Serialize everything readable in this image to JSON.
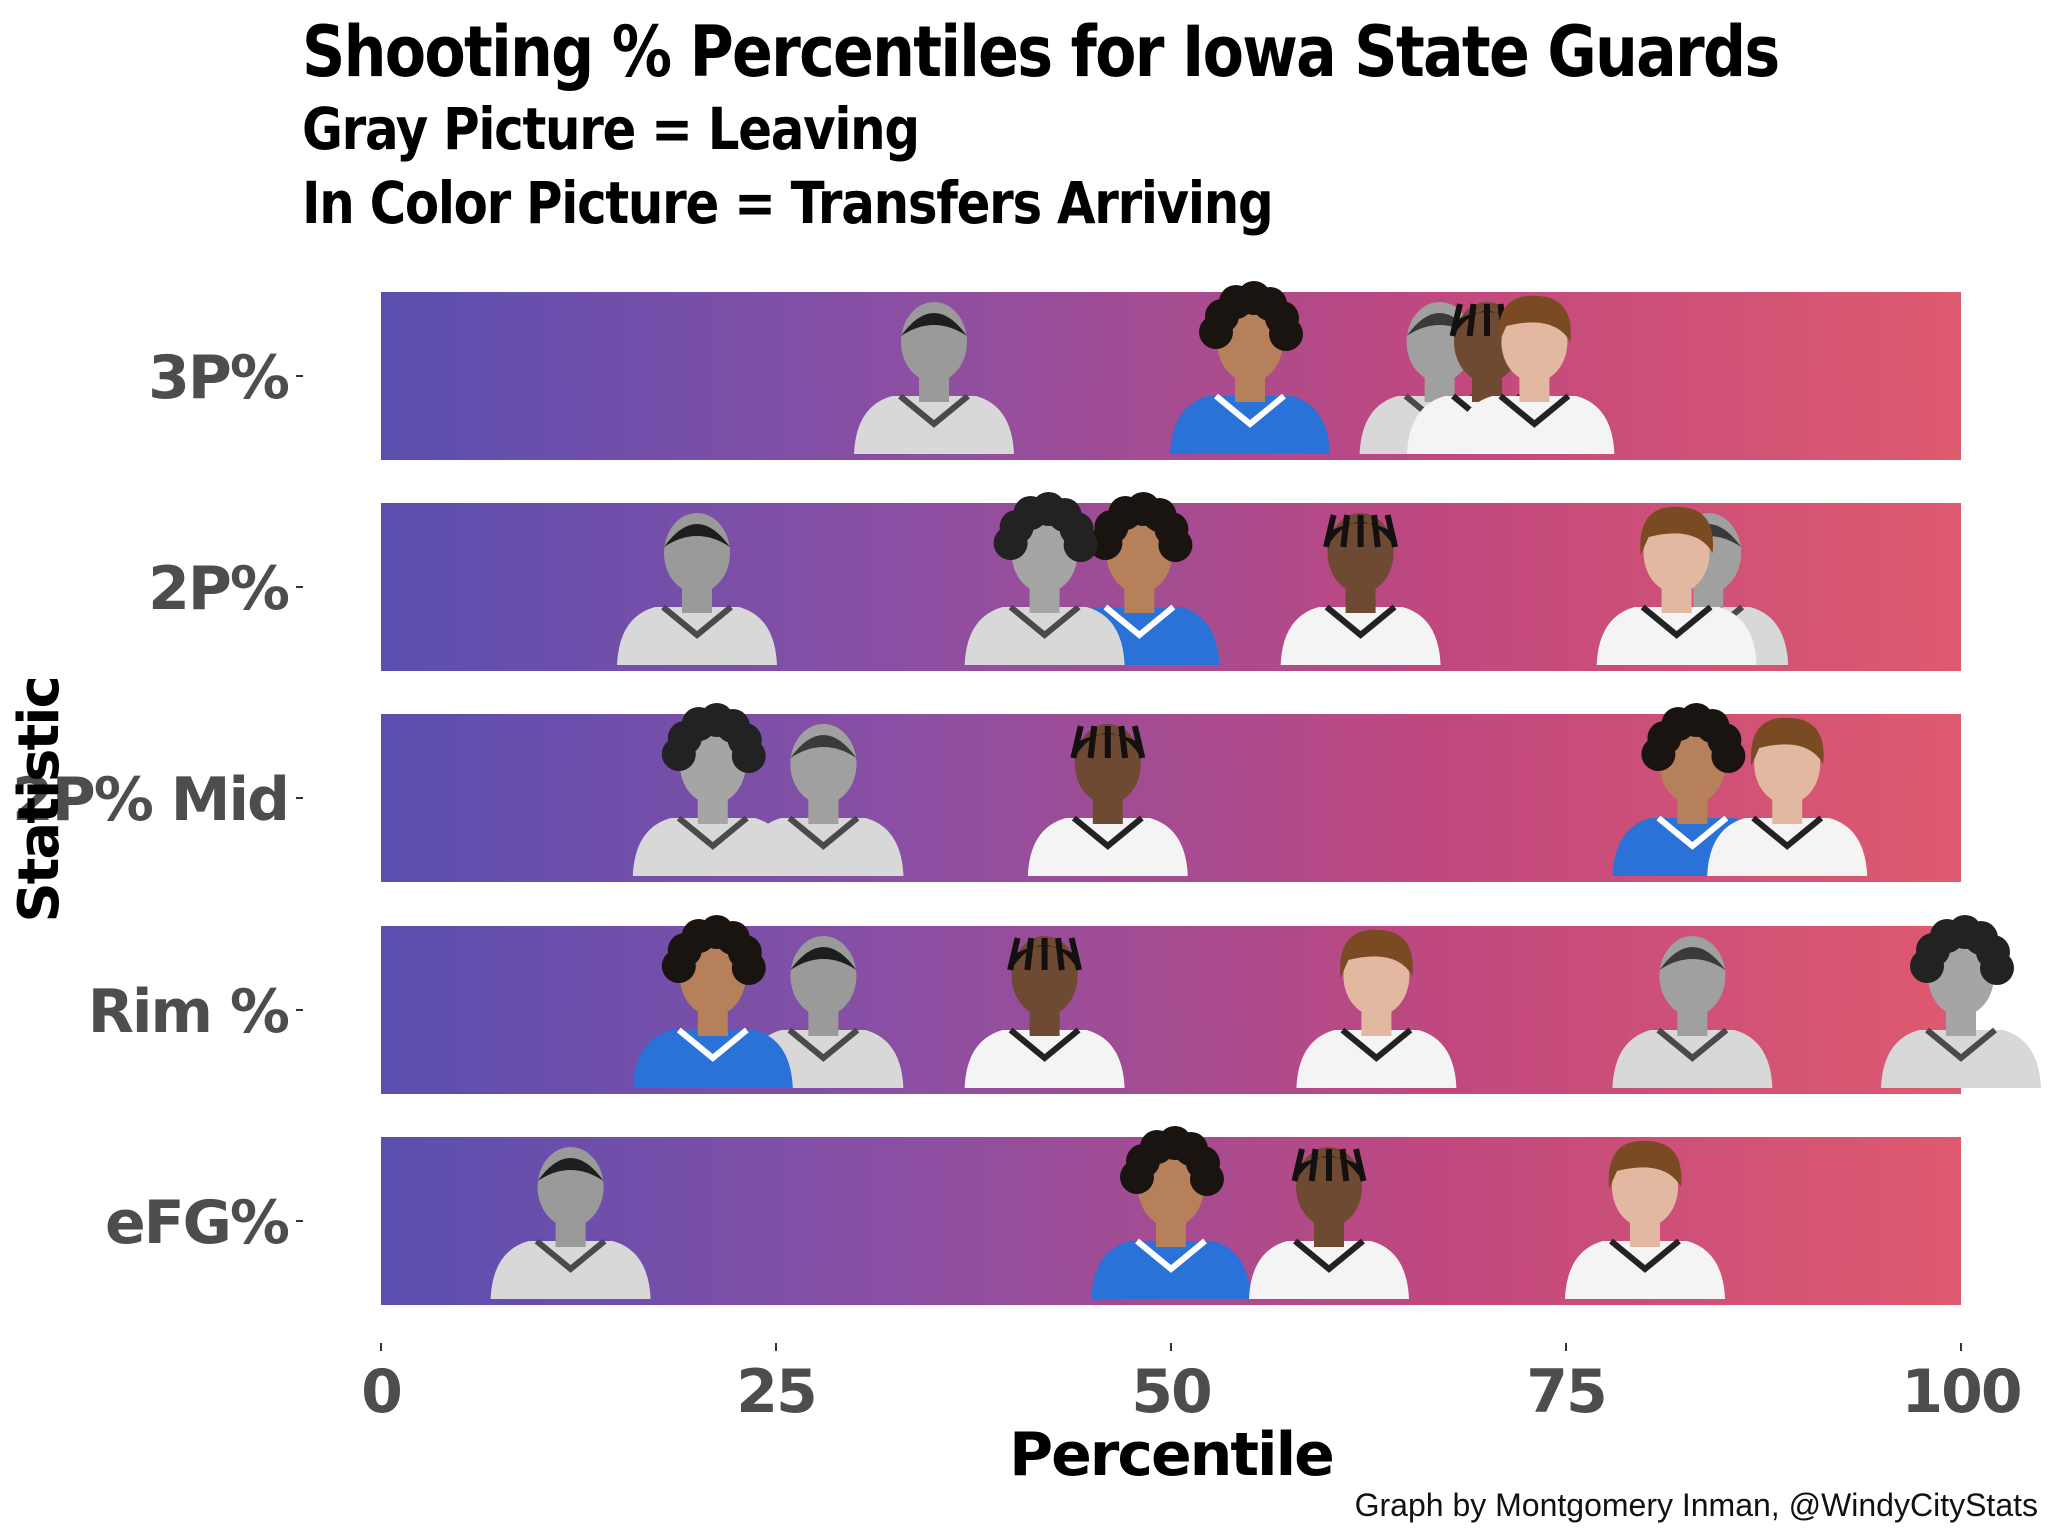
{
  "chart_data": {
    "type": "scatter",
    "title": "Shooting % Percentiles for Iowa State Guards",
    "subtitle_lines": [
      "Gray Picture = Leaving",
      "In Color Picture = Transfers Arriving"
    ],
    "xlabel": "Percentile",
    "ylabel": "Statistic",
    "xlim": [
      0,
      100
    ],
    "x_ticks": [
      "0",
      "25",
      "50",
      "75",
      "100"
    ],
    "x_tick_values": [
      0,
      25,
      50,
      75,
      100
    ],
    "categories": [
      "3P%",
      "2P%",
      "2P% Mid",
      "Rim %",
      "eFG%"
    ],
    "gradient": [
      "#5a4fb0",
      "#8b4fa3",
      "#c0487f",
      "#de5a6f"
    ],
    "legend": "none",
    "grid": false,
    "series": [
      {
        "colors": [
          "#c9c9c9",
          "#4a4a4a"
        ],
        "jersey": "#d8d8d8",
        "skin": "#9a9a9a",
        "hair": "#1e1e1e",
        "hair_style": "short",
        "values": [
          35,
          20,
          28,
          28,
          12
        ]
      },
      {
        "colors": [
          "#2f6fd6",
          "#ffffff"
        ],
        "jersey": "#2a72d8",
        "skin": "#b5805a",
        "hair": "#1a1410",
        "hair_style": "curly",
        "values": [
          55,
          48,
          83,
          21,
          50
        ]
      },
      {
        "colors": [
          "#c9c9c9",
          "#4a4a4a"
        ],
        "jersey": "#d8d8d8",
        "skin": "#a0a0a0",
        "hair": "#3a3a3a",
        "hair_style": "short",
        "values": [
          67,
          84,
          28,
          83,
          80
        ]
      },
      {
        "colors": [
          "#ffffff",
          "#222222"
        ],
        "jersey": "#f4f4f4",
        "skin": "#6e4a32",
        "hair": "#141010",
        "hair_style": "locs",
        "values": [
          70,
          62,
          46,
          42,
          60
        ]
      },
      {
        "colors": [
          "#ffffff",
          "#222222"
        ],
        "jersey": "#f4f4f4",
        "skin": "#e3b8a0",
        "hair": "#7a4a22",
        "hair_style": "swoop",
        "values": [
          73,
          82,
          89,
          63,
          80
        ]
      },
      {
        "colors": [
          "#c9c9c9",
          "#4a4a4a"
        ],
        "jersey": "#d8d8d8",
        "skin": "#a5a5a5",
        "hair": "#222222",
        "hair_style": "curly",
        "values": [
          null,
          42,
          21,
          100,
          null
        ]
      }
    ]
  },
  "caption": "Graph by Montgomery Inman, @WindyCityStats"
}
